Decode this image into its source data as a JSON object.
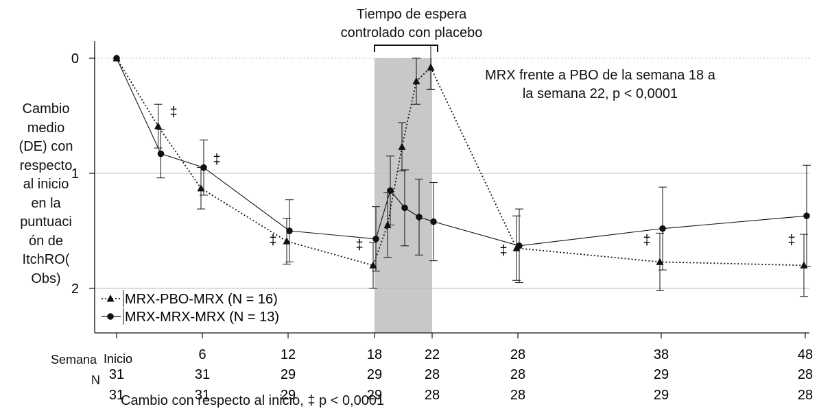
{
  "chart_data": {
    "type": "line",
    "ylabel": "Cambio medio (DE) con respecto al inicio en la puntuación de ItchRO(Obs)",
    "ylabel_lines": [
      "Cambio",
      "medio",
      "(DE) con",
      "respecto",
      "al inicio",
      "en la",
      "puntuaci",
      "ón de",
      "ItchRO(",
      "Obs)"
    ],
    "yticks": [
      "0",
      "1",
      "2"
    ],
    "ylim": [
      0,
      2.35
    ],
    "y_reversed": true,
    "x_week_labels": [
      "BL",
      "6",
      "12",
      "18",
      "22",
      "28",
      "38",
      "48"
    ],
    "x_first_label_overlay": "Inicio",
    "row_label_week": "Semana",
    "row_label_n": "N",
    "n_mrx_pbo": [
      "31",
      "31",
      "29",
      "29",
      "28",
      "28",
      "29",
      "28"
    ],
    "n_mrx_mrx": [
      "31",
      "31",
      "29",
      "29",
      "28",
      "28",
      "29",
      "28"
    ],
    "shaded_period": {
      "from_week": 18,
      "to_week": 22,
      "label_lines": [
        "Tiempo de espera",
        "controlado con placebo"
      ],
      "color": "#c8c8c8"
    },
    "annotation_lines": [
      "MRX frente a PBO de la semana 18 a",
      "la semana 22, p < 0,0001"
    ],
    "series": [
      {
        "name": "MRX-PBO-MRX (N = 16)",
        "marker": "triangle",
        "dash": "dotted",
        "x": [
          0,
          3,
          6,
          12,
          18,
          19,
          20,
          21,
          22,
          28,
          38,
          48
        ],
        "y": [
          0.0,
          0.59,
          1.13,
          1.59,
          1.8,
          1.45,
          0.77,
          0.2,
          0.08,
          1.65,
          1.77,
          1.8
        ],
        "err": [
          0.0,
          0.19,
          0.18,
          0.2,
          0.2,
          0.28,
          0.21,
          0.2,
          0.19,
          0.28,
          0.25,
          0.27
        ]
      },
      {
        "name": "MRX-MRX-MRX (N = 13)",
        "marker": "circle",
        "dash": "solid",
        "x": [
          0,
          3,
          6,
          12,
          18,
          19,
          20,
          21,
          22,
          28,
          38,
          48
        ],
        "y": [
          0.0,
          0.83,
          0.95,
          1.5,
          1.57,
          1.15,
          1.3,
          1.38,
          1.42,
          1.63,
          1.48,
          1.37
        ],
        "err": [
          0.0,
          0.21,
          0.24,
          0.27,
          0.28,
          0.3,
          0.33,
          0.33,
          0.34,
          0.32,
          0.36,
          0.44
        ]
      }
    ],
    "significance_marker": "‡",
    "significance_weeks": [
      4,
      7,
      12,
      18,
      28,
      38,
      48
    ],
    "footnote": "Cambio con respecto al inicio, ‡ p < 0,0001",
    "colors": {
      "line": "#111111",
      "gridline": "#bbbbbb",
      "shade": "#c8c8c8"
    }
  }
}
